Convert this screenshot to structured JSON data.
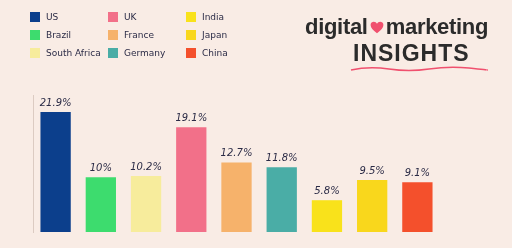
{
  "chart_data": {
    "type": "bar",
    "title": "digital marketing",
    "subtitle": "INSIGHTS",
    "categories": [
      "US",
      "Brazil",
      "South Africa",
      "UK",
      "France",
      "Germany",
      "India",
      "Japan",
      "China"
    ],
    "values": [
      21.9,
      10,
      10.2,
      19.1,
      12.7,
      11.8,
      5.8,
      9.5,
      9.1
    ],
    "value_labels": [
      "21.9%",
      "10%",
      "10.2%",
      "19.1%",
      "12.7%",
      "11.8%",
      "5.8%",
      "9.5%",
      "9.1%"
    ],
    "colors": [
      "#0c3f8c",
      "#3ddc6e",
      "#f7ec9c",
      "#f27089",
      "#f6b26b",
      "#4aada6",
      "#f9e21b",
      "#f9d71c",
      "#f4502c"
    ],
    "ylim": [
      0,
      25
    ],
    "grid": false,
    "legend": "top-left",
    "data_labels": true,
    "tick_labels": false
  }
}
